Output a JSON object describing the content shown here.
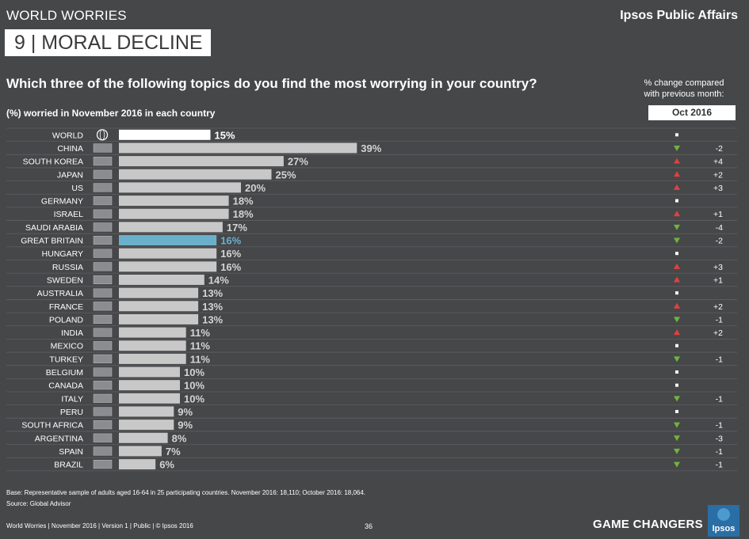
{
  "header": {
    "section": "WORLD WORRIES",
    "brand": "Ipsos Public Affairs",
    "topic": "9  | MORAL DECLINE",
    "question": "Which three of the following topics do you find the most worrying in your country?",
    "change_heading_line1": "% change compared",
    "change_heading_line2": "with previous month:",
    "subtitle": "(%) worried in November 2016 in each country",
    "compare_month": "Oct 2016"
  },
  "colors": {
    "background": "#464749",
    "bar_default": "#c8c8c8",
    "bar_world": "#ffffff",
    "bar_highlight": "#6bb0cb",
    "up": "#e2403f",
    "down": "#6fb43f",
    "nochange": "#ffffff"
  },
  "chart_data": {
    "type": "bar",
    "orientation": "horizontal",
    "categories": [
      "WORLD",
      "CHINA",
      "SOUTH KOREA",
      "JAPAN",
      "US",
      "GERMANY",
      "ISRAEL",
      "SAUDI ARABIA",
      "GREAT BRITAIN",
      "HUNGARY",
      "RUSSIA",
      "SWEDEN",
      "AUSTRALIA",
      "FRANCE",
      "POLAND",
      "INDIA",
      "MEXICO",
      "TURKEY",
      "BELGIUM",
      "CANADA",
      "ITALY",
      "PERU",
      "SOUTH AFRICA",
      "ARGENTINA",
      "SPAIN",
      "BRAZIL"
    ],
    "values": [
      15,
      39,
      27,
      25,
      20,
      18,
      18,
      17,
      16,
      16,
      16,
      14,
      13,
      13,
      13,
      11,
      11,
      11,
      10,
      10,
      10,
      9,
      9,
      8,
      7,
      6
    ],
    "value_labels": [
      "15%",
      "39%",
      "27%",
      "25%",
      "20%",
      "18%",
      "18%",
      "17%",
      "16%",
      "16%",
      "16%",
      "14%",
      "13%",
      "13%",
      "13%",
      "11%",
      "11%",
      "11%",
      "10%",
      "10%",
      "10%",
      "9%",
      "9%",
      "8%",
      "7%",
      "6%"
    ],
    "highlight": "GREAT BRITAIN",
    "change_direction": [
      "none",
      "down",
      "up",
      "up",
      "up",
      "none",
      "up",
      "down",
      "down",
      "none",
      "up",
      "up",
      "none",
      "up",
      "down",
      "up",
      "none",
      "down",
      "none",
      "none",
      "down",
      "none",
      "down",
      "down",
      "down",
      "down"
    ],
    "change_labels": [
      "",
      "-2",
      "+4",
      "+2",
      "+3",
      "",
      "+1",
      "-4",
      "-2",
      "",
      "+3",
      "+1",
      "",
      "+2",
      "-1",
      "+2",
      "",
      "-1",
      "",
      "",
      "-1",
      "",
      "-1",
      "-3",
      "-1",
      "-1"
    ],
    "xlim": [
      0,
      40
    ]
  },
  "footer": {
    "base": "Base: Representative sample of adults aged 16-64 in 25 participating countries. November 2016: 18,110; October 2016: 18,064.",
    "source": "Source: Global Advisor",
    "doc_info": "World Worries | November 2016 | Version 1 | Public | © Ipsos 2016",
    "page_number": "36",
    "tagline": "GAME CHANGERS",
    "logo_text": "Ipsos"
  }
}
